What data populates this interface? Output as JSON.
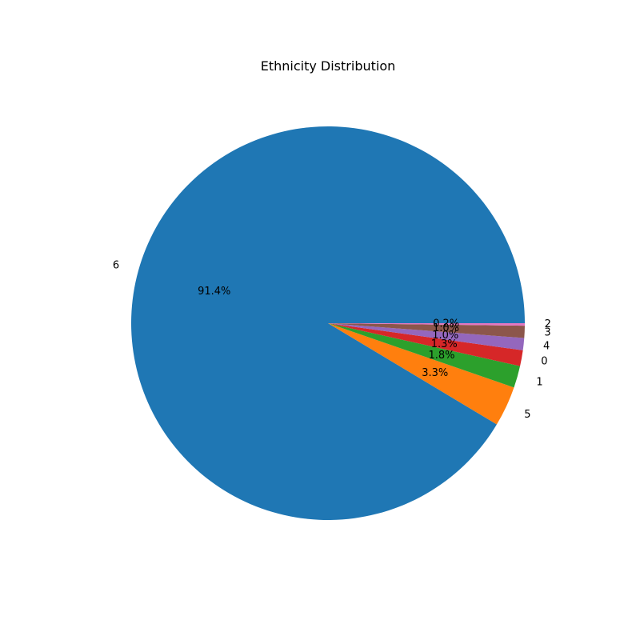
{
  "chart_data": {
    "type": "pie",
    "title": "Ethnicity Distribution",
    "start_angle_deg": 0,
    "direction": "counterclockwise",
    "slices": [
      {
        "label": "6",
        "value": 91.4,
        "pct_label": "91.4%",
        "color": "#1f77b4"
      },
      {
        "label": "5",
        "value": 3.3,
        "pct_label": "3.3%",
        "color": "#ff7f0e"
      },
      {
        "label": "1",
        "value": 1.8,
        "pct_label": "1.8%",
        "color": "#2ca02c"
      },
      {
        "label": "0",
        "value": 1.3,
        "pct_label": "1.3%",
        "color": "#d62728"
      },
      {
        "label": "4",
        "value": 1.0,
        "pct_label": "1.0%",
        "color": "#9467bd"
      },
      {
        "label": "3",
        "value": 1.0,
        "pct_label": "1.0%",
        "color": "#8c564b"
      },
      {
        "label": "2",
        "value": 0.2,
        "pct_label": "0.2%",
        "color": "#e377c2"
      }
    ]
  }
}
